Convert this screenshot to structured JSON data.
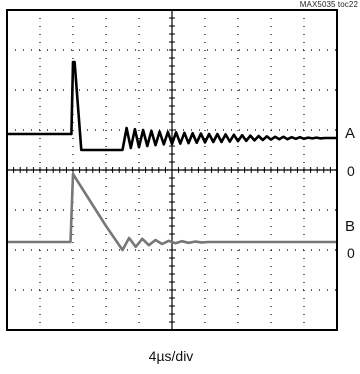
{
  "figure_id": "MAX5035 toc22",
  "chart_data": {
    "type": "line",
    "xlabel": "4µs/div",
    "xlim": [
      0,
      40
    ],
    "x_units": "µs",
    "grid": true,
    "divisions": {
      "horizontal": 10,
      "vertical": 8
    },
    "traces": [
      {
        "name": "A",
        "zero_label": "0",
        "color": "#000000",
        "zero_division_from_top": 3.5
      },
      {
        "name": "B",
        "zero_label": "0",
        "color": "#777777",
        "zero_division_from_top": 5.8
      }
    ],
    "series": [
      {
        "name": "A",
        "x": [
          0,
          7.8,
          8.0,
          8.2,
          9.0,
          14.0,
          14.5,
          15.0,
          15.5,
          16.0,
          16.5,
          17.0,
          17.5,
          18.0,
          18.5,
          19.0,
          19.5,
          20.0,
          20.5,
          21.0,
          21.5,
          22.0,
          22.5,
          23.0,
          23.5,
          24.0,
          24.5,
          25.0,
          25.5,
          26.0,
          26.5,
          27.0,
          27.5,
          28.0,
          28.5,
          29.0,
          29.5,
          30.0,
          30.5,
          31.0,
          31.5,
          32.0,
          32.5,
          33.0,
          33.5,
          34.0,
          34.5,
          35.0,
          35.5,
          36.0,
          36.5,
          37.0,
          37.5,
          38.0,
          38.5,
          39.0,
          39.5,
          40.0
        ],
        "y": [
          0.4,
          0.4,
          2.2,
          2.2,
          0.0,
          0.0,
          0.55,
          0.05,
          0.52,
          0.07,
          0.5,
          0.1,
          0.48,
          0.12,
          0.46,
          0.14,
          0.45,
          0.15,
          0.44,
          0.16,
          0.43,
          0.17,
          0.42,
          0.18,
          0.41,
          0.19,
          0.4,
          0.2,
          0.4,
          0.2,
          0.39,
          0.21,
          0.38,
          0.22,
          0.37,
          0.23,
          0.36,
          0.24,
          0.35,
          0.25,
          0.34,
          0.26,
          0.33,
          0.27,
          0.33,
          0.27,
          0.32,
          0.28,
          0.32,
          0.28,
          0.31,
          0.29,
          0.31,
          0.29,
          0.3,
          0.3,
          0.3,
          0.3
        ]
      },
      {
        "name": "B",
        "x": [
          0,
          7.7,
          8.0,
          10.0,
          12.0,
          14.0,
          14.8,
          15.6,
          16.4,
          17.2,
          18.0,
          18.8,
          19.6,
          20.4,
          21.2,
          22.0,
          22.8,
          23.6,
          24.4,
          25.2,
          26.0,
          40.0
        ],
        "y": [
          0.0,
          0.0,
          1.7,
          1.05,
          0.4,
          -0.2,
          0.1,
          -0.12,
          0.08,
          -0.08,
          0.05,
          -0.05,
          0.03,
          -0.03,
          0.02,
          -0.02,
          0.01,
          -0.01,
          0.0,
          0.0,
          0.0,
          0.0
        ]
      }
    ]
  }
}
